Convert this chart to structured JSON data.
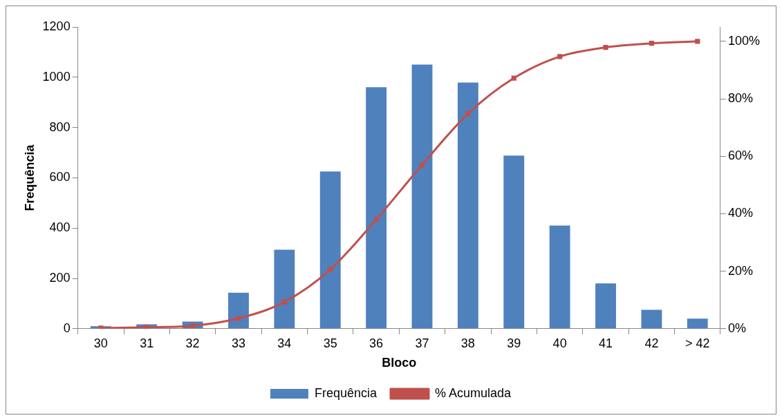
{
  "chart_data": {
    "type": "bar",
    "xlabel": "Bloco",
    "ylabel": "Frequência",
    "categories": [
      "30",
      "31",
      "32",
      "33",
      "34",
      "35",
      "36",
      "37",
      "38",
      "39",
      "40",
      "41",
      "42",
      "> 42"
    ],
    "series": [
      {
        "name": "Frequência",
        "color": "#4f81bd",
        "values": [
          10,
          17,
          28,
          143,
          314,
          625,
          960,
          1050,
          979,
          688,
          410,
          180,
          75,
          40
        ]
      },
      {
        "name": "% Acumulada",
        "type": "line",
        "axis": "y2",
        "color": "#c0504d",
        "marker": "square",
        "values": [
          0.2,
          0.5,
          1.0,
          3.6,
          9.3,
          20.6,
          38.0,
          57.0,
          74.8,
          87.2,
          94.7,
          97.9,
          99.3,
          100
        ]
      }
    ],
    "ylim": [
      0,
      1200
    ],
    "yticks": [
      0,
      200,
      400,
      600,
      800,
      1000,
      1200
    ],
    "y2lim": [
      0,
      105
    ],
    "y2ticks": [
      {
        "value": 0,
        "label": "0%"
      },
      {
        "value": 20,
        "label": "20%"
      },
      {
        "value": 40,
        "label": "40%"
      },
      {
        "value": 60,
        "label": "60%"
      },
      {
        "value": 80,
        "label": "80%"
      },
      {
        "value": 100,
        "label": "100%"
      }
    ],
    "grid": false,
    "legend": "bottom"
  }
}
